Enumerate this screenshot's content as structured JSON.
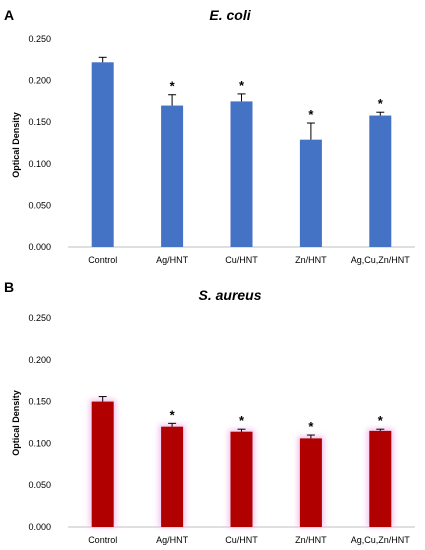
{
  "chart_data": [
    {
      "type": "bar",
      "panel": "A",
      "title": "E. coli",
      "xlabel": "",
      "ylabel": "Optical Density",
      "ylim": [
        0,
        0.25
      ],
      "yticks": [
        "0.000",
        "0.050",
        "0.100",
        "0.150",
        "0.200",
        "0.250"
      ],
      "categories": [
        "Control",
        "Ag/HNT",
        "Cu/HNT",
        "Zn/HNT",
        "Ag,Cu,Zn/HNT"
      ],
      "values": [
        0.222,
        0.17,
        0.175,
        0.129,
        0.158
      ],
      "errors": [
        0.006,
        0.013,
        0.009,
        0.02,
        0.004
      ],
      "significance": [
        "",
        "*",
        "*",
        "*",
        "*"
      ],
      "bar_color": "#4472c4",
      "grid": false,
      "legend": "none"
    },
    {
      "type": "bar",
      "panel": "B",
      "title": "S. aureus",
      "xlabel": "",
      "ylabel": "Optical Density",
      "ylim": [
        0,
        0.25
      ],
      "yticks": [
        "0.000",
        "0.050",
        "0.100",
        "0.150",
        "0.200",
        "0.250"
      ],
      "categories": [
        "Control",
        "Ag/HNT",
        "Cu/HNT",
        "Zn/HNT",
        "Ag,Cu,Zn/HNT"
      ],
      "values": [
        0.15,
        0.12,
        0.114,
        0.106,
        0.115
      ],
      "errors": [
        0.006,
        0.004,
        0.003,
        0.004,
        0.002
      ],
      "significance": [
        "",
        "*",
        "*",
        "*",
        "*"
      ],
      "bar_color": "#b00000",
      "glow_color": "#f0b8ec",
      "grid": false,
      "legend": "none"
    }
  ]
}
